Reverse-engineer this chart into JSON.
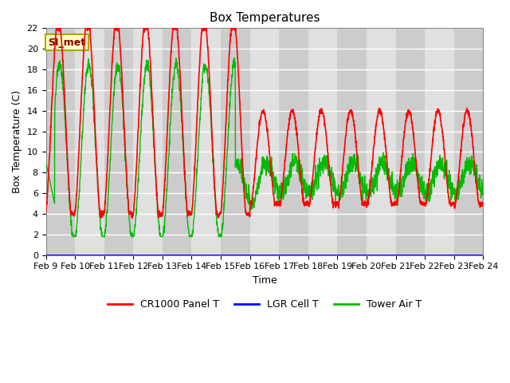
{
  "title": "Box Temperatures",
  "xlabel": "Time",
  "ylabel": "Box Temperature (C)",
  "ylim": [
    0,
    22
  ],
  "background_color": "#ffffff",
  "plot_bg_color": "#e0e0e0",
  "grid_color": "#ffffff",
  "si_label": "SI_met",
  "legend_entries": [
    "CR1000 Panel T",
    "LGR Cell T",
    "Tower Air T"
  ],
  "legend_colors": [
    "#ff0000",
    "#0000ff",
    "#00bb00"
  ],
  "x_tick_labels": [
    "Feb 9",
    "Feb 10",
    "Feb 11",
    "Feb 12",
    "Feb 13",
    "Feb 14",
    "Feb 15",
    "Feb 16",
    "Feb 17",
    "Feb 18",
    "Feb 19",
    "Feb 20",
    "Feb 21",
    "Feb 22",
    "Feb 23",
    "Feb 24"
  ],
  "red_line_color": "#ff0000",
  "blue_line_color": "#0000ff",
  "green_line_color": "#00bb00",
  "yticks": [
    0,
    2,
    4,
    6,
    8,
    10,
    12,
    14,
    16,
    18,
    20,
    22
  ],
  "title_fontsize": 11,
  "axis_fontsize": 9,
  "tick_fontsize": 8,
  "legend_fontsize": 9
}
